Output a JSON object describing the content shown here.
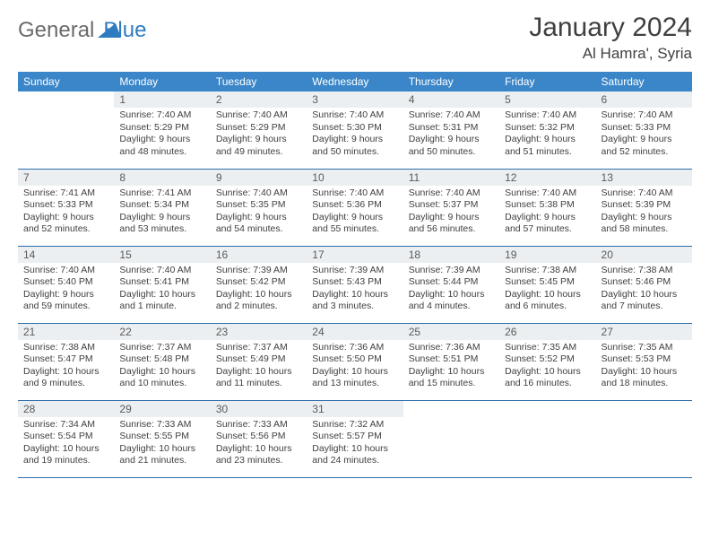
{
  "logo": {
    "text1": "General",
    "text2": "Blue"
  },
  "title": "January 2024",
  "location": "Al Hamra', Syria",
  "colors": {
    "header_bg": "#3a86c8",
    "row_border": "#2f6da8",
    "daynum_bg": "#eceff1",
    "text": "#404040",
    "logo_gray": "#6b6b6b",
    "logo_blue": "#2f7bbf"
  },
  "weekdays": [
    "Sunday",
    "Monday",
    "Tuesday",
    "Wednesday",
    "Thursday",
    "Friday",
    "Saturday"
  ],
  "weeks": [
    [
      {
        "n": "",
        "sr": "",
        "ss": "",
        "dl": ""
      },
      {
        "n": "1",
        "sr": "Sunrise: 7:40 AM",
        "ss": "Sunset: 5:29 PM",
        "dl": "Daylight: 9 hours and 48 minutes."
      },
      {
        "n": "2",
        "sr": "Sunrise: 7:40 AM",
        "ss": "Sunset: 5:29 PM",
        "dl": "Daylight: 9 hours and 49 minutes."
      },
      {
        "n": "3",
        "sr": "Sunrise: 7:40 AM",
        "ss": "Sunset: 5:30 PM",
        "dl": "Daylight: 9 hours and 50 minutes."
      },
      {
        "n": "4",
        "sr": "Sunrise: 7:40 AM",
        "ss": "Sunset: 5:31 PM",
        "dl": "Daylight: 9 hours and 50 minutes."
      },
      {
        "n": "5",
        "sr": "Sunrise: 7:40 AM",
        "ss": "Sunset: 5:32 PM",
        "dl": "Daylight: 9 hours and 51 minutes."
      },
      {
        "n": "6",
        "sr": "Sunrise: 7:40 AM",
        "ss": "Sunset: 5:33 PM",
        "dl": "Daylight: 9 hours and 52 minutes."
      }
    ],
    [
      {
        "n": "7",
        "sr": "Sunrise: 7:41 AM",
        "ss": "Sunset: 5:33 PM",
        "dl": "Daylight: 9 hours and 52 minutes."
      },
      {
        "n": "8",
        "sr": "Sunrise: 7:41 AM",
        "ss": "Sunset: 5:34 PM",
        "dl": "Daylight: 9 hours and 53 minutes."
      },
      {
        "n": "9",
        "sr": "Sunrise: 7:40 AM",
        "ss": "Sunset: 5:35 PM",
        "dl": "Daylight: 9 hours and 54 minutes."
      },
      {
        "n": "10",
        "sr": "Sunrise: 7:40 AM",
        "ss": "Sunset: 5:36 PM",
        "dl": "Daylight: 9 hours and 55 minutes."
      },
      {
        "n": "11",
        "sr": "Sunrise: 7:40 AM",
        "ss": "Sunset: 5:37 PM",
        "dl": "Daylight: 9 hours and 56 minutes."
      },
      {
        "n": "12",
        "sr": "Sunrise: 7:40 AM",
        "ss": "Sunset: 5:38 PM",
        "dl": "Daylight: 9 hours and 57 minutes."
      },
      {
        "n": "13",
        "sr": "Sunrise: 7:40 AM",
        "ss": "Sunset: 5:39 PM",
        "dl": "Daylight: 9 hours and 58 minutes."
      }
    ],
    [
      {
        "n": "14",
        "sr": "Sunrise: 7:40 AM",
        "ss": "Sunset: 5:40 PM",
        "dl": "Daylight: 9 hours and 59 minutes."
      },
      {
        "n": "15",
        "sr": "Sunrise: 7:40 AM",
        "ss": "Sunset: 5:41 PM",
        "dl": "Daylight: 10 hours and 1 minute."
      },
      {
        "n": "16",
        "sr": "Sunrise: 7:39 AM",
        "ss": "Sunset: 5:42 PM",
        "dl": "Daylight: 10 hours and 2 minutes."
      },
      {
        "n": "17",
        "sr": "Sunrise: 7:39 AM",
        "ss": "Sunset: 5:43 PM",
        "dl": "Daylight: 10 hours and 3 minutes."
      },
      {
        "n": "18",
        "sr": "Sunrise: 7:39 AM",
        "ss": "Sunset: 5:44 PM",
        "dl": "Daylight: 10 hours and 4 minutes."
      },
      {
        "n": "19",
        "sr": "Sunrise: 7:38 AM",
        "ss": "Sunset: 5:45 PM",
        "dl": "Daylight: 10 hours and 6 minutes."
      },
      {
        "n": "20",
        "sr": "Sunrise: 7:38 AM",
        "ss": "Sunset: 5:46 PM",
        "dl": "Daylight: 10 hours and 7 minutes."
      }
    ],
    [
      {
        "n": "21",
        "sr": "Sunrise: 7:38 AM",
        "ss": "Sunset: 5:47 PM",
        "dl": "Daylight: 10 hours and 9 minutes."
      },
      {
        "n": "22",
        "sr": "Sunrise: 7:37 AM",
        "ss": "Sunset: 5:48 PM",
        "dl": "Daylight: 10 hours and 10 minutes."
      },
      {
        "n": "23",
        "sr": "Sunrise: 7:37 AM",
        "ss": "Sunset: 5:49 PM",
        "dl": "Daylight: 10 hours and 11 minutes."
      },
      {
        "n": "24",
        "sr": "Sunrise: 7:36 AM",
        "ss": "Sunset: 5:50 PM",
        "dl": "Daylight: 10 hours and 13 minutes."
      },
      {
        "n": "25",
        "sr": "Sunrise: 7:36 AM",
        "ss": "Sunset: 5:51 PM",
        "dl": "Daylight: 10 hours and 15 minutes."
      },
      {
        "n": "26",
        "sr": "Sunrise: 7:35 AM",
        "ss": "Sunset: 5:52 PM",
        "dl": "Daylight: 10 hours and 16 minutes."
      },
      {
        "n": "27",
        "sr": "Sunrise: 7:35 AM",
        "ss": "Sunset: 5:53 PM",
        "dl": "Daylight: 10 hours and 18 minutes."
      }
    ],
    [
      {
        "n": "28",
        "sr": "Sunrise: 7:34 AM",
        "ss": "Sunset: 5:54 PM",
        "dl": "Daylight: 10 hours and 19 minutes."
      },
      {
        "n": "29",
        "sr": "Sunrise: 7:33 AM",
        "ss": "Sunset: 5:55 PM",
        "dl": "Daylight: 10 hours and 21 minutes."
      },
      {
        "n": "30",
        "sr": "Sunrise: 7:33 AM",
        "ss": "Sunset: 5:56 PM",
        "dl": "Daylight: 10 hours and 23 minutes."
      },
      {
        "n": "31",
        "sr": "Sunrise: 7:32 AM",
        "ss": "Sunset: 5:57 PM",
        "dl": "Daylight: 10 hours and 24 minutes."
      },
      {
        "n": "",
        "sr": "",
        "ss": "",
        "dl": ""
      },
      {
        "n": "",
        "sr": "",
        "ss": "",
        "dl": ""
      },
      {
        "n": "",
        "sr": "",
        "ss": "",
        "dl": ""
      }
    ]
  ]
}
